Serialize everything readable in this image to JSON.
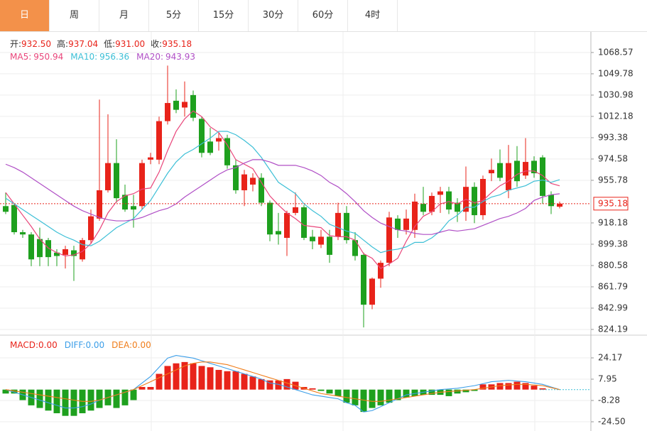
{
  "tabs": [
    {
      "label": "日",
      "selected": true
    },
    {
      "label": "周",
      "selected": false
    },
    {
      "label": "月",
      "selected": false
    },
    {
      "label": "5分",
      "selected": false
    },
    {
      "label": "15分",
      "selected": false
    },
    {
      "label": "30分",
      "selected": false
    },
    {
      "label": "60分",
      "selected": false
    },
    {
      "label": "4时",
      "selected": false
    }
  ],
  "chart_data": [
    {
      "type": "candlestick",
      "ohlc_legend": [
        {
          "label": "开:",
          "value": "932.50"
        },
        {
          "label": "高:",
          "value": "937.04"
        },
        {
          "label": "低:",
          "value": "931.00"
        },
        {
          "label": "收:",
          "value": "935.18"
        }
      ],
      "up_color": "#e8231a",
      "down_color": "#1ea01e",
      "ylim": [
        820.4,
        1086.7
      ],
      "yticks": [
        1068.57,
        1049.78,
        1030.98,
        1012.18,
        993.38,
        974.58,
        955.78,
        918.18,
        899.38,
        880.58,
        861.79,
        842.99,
        824.19
      ],
      "grid": true,
      "last_price": 935.18,
      "open": [
        933,
        934,
        910,
        908,
        904,
        903,
        892,
        890,
        894,
        886,
        903,
        922,
        947,
        971,
        943,
        933,
        933,
        974,
        974,
        1008,
        1026,
        1020,
        1031,
        1010,
        990,
        990,
        993,
        969,
        947,
        952,
        958,
        936,
        911,
        905,
        927,
        932,
        906,
        899,
        906,
        906,
        927,
        903,
        890,
        846,
        869,
        883,
        922,
        912,
        912,
        935,
        928,
        943,
        946,
        936,
        928,
        950,
        925,
        962,
        971,
        947,
        973,
        960,
        973,
        976,
        943,
        932.5
      ],
      "high": [
        945,
        935,
        912,
        910,
        914,
        905,
        895,
        898,
        898,
        905,
        930,
        1027,
        1014,
        992,
        952,
        943,
        974,
        980,
        1012,
        1057,
        1036,
        1043,
        1035,
        1012,
        1002,
        998,
        996,
        974,
        965,
        962,
        962,
        938,
        927,
        929,
        945,
        934,
        912,
        912,
        912,
        936,
        933,
        910,
        892,
        870,
        885,
        928,
        925,
        930,
        944,
        950,
        945,
        950,
        950,
        940,
        968,
        954,
        960,
        975,
        983,
        987,
        986,
        993,
        977,
        978,
        946,
        937.04
      ],
      "low": [
        926,
        908,
        905,
        880,
        880,
        880,
        880,
        878,
        867,
        884,
        900,
        920,
        945,
        936,
        928,
        914,
        930,
        970,
        970,
        1005,
        1015,
        1012,
        1008,
        976,
        978,
        982,
        966,
        944,
        933,
        946,
        933,
        902,
        899,
        889,
        925,
        903,
        895,
        896,
        883,
        903,
        900,
        885,
        826,
        842,
        861,
        880,
        905,
        908,
        905,
        925,
        925,
        927,
        926,
        919,
        920,
        918,
        921,
        955,
        955,
        940,
        950,
        957,
        958,
        935,
        926,
        931
      ],
      "close": [
        928,
        910,
        908,
        886,
        888,
        888,
        889,
        895,
        889,
        903,
        924,
        947,
        971,
        940,
        930,
        930,
        971,
        976,
        1008,
        1024,
        1018,
        1025,
        1011,
        980,
        980,
        993,
        969,
        947,
        961,
        958,
        936,
        908,
        908,
        927,
        932,
        905,
        902,
        906,
        890,
        927,
        903,
        889,
        846,
        869,
        883,
        923,
        912,
        922,
        937,
        928,
        942,
        946,
        930,
        928,
        950,
        925,
        957,
        965,
        958,
        971,
        955,
        972,
        962,
        942,
        933,
        935.18
      ],
      "series": [
        {
          "name": "MA5:",
          "value_label": "950.94",
          "color": "#e9457a",
          "values": [
            945,
            935,
            925,
            915,
            904,
            896,
            892,
            889,
            890,
            893,
            900,
            912,
            927,
            937,
            942,
            944,
            948,
            949,
            963,
            982,
            999,
            1010,
            1017,
            1012,
            1003,
            998,
            987,
            974,
            970,
            966,
            954,
            942,
            934,
            927,
            922,
            916,
            915,
            914,
            907,
            906,
            906,
            903,
            891,
            887,
            878,
            882,
            887,
            902,
            915,
            924,
            928,
            935,
            937,
            935,
            939,
            936,
            938,
            945,
            951,
            955,
            961,
            964,
            964,
            960,
            953,
            950.94
          ]
        },
        {
          "name": "MA10:",
          "value_label": "956.36",
          "color": "#3cbfd6",
          "values": [
            940,
            935,
            930,
            925,
            920,
            915,
            910,
            906,
            903,
            899,
            898,
            902,
            908,
            914,
            918,
            922,
            930,
            938,
            950,
            962,
            972,
            979,
            983,
            988,
            993,
            999,
            999,
            996,
            991,
            985,
            976,
            965,
            954,
            949,
            944,
            935,
            929,
            924,
            917,
            914,
            911,
            909,
            903,
            897,
            892,
            894,
            895,
            897,
            901,
            901,
            905,
            911,
            920,
            925,
            932,
            932,
            937,
            941,
            943,
            947,
            949,
            951,
            955,
            956,
            954,
            956.36
          ]
        },
        {
          "name": "MA20:",
          "value_label": "943.93",
          "color": "#b04fc6",
          "values": [
            970,
            967,
            963,
            958,
            953,
            948,
            943,
            938,
            933,
            929,
            926,
            923,
            921,
            920,
            920,
            921,
            923,
            926,
            929,
            931,
            935,
            941,
            946,
            951,
            956,
            961,
            965,
            967,
            971,
            974,
            974,
            972,
            969,
            969,
            969,
            967,
            964,
            960,
            954,
            950,
            944,
            937,
            929,
            923,
            918,
            915,
            912,
            911,
            909,
            908,
            908,
            910,
            912,
            911,
            912,
            913,
            916,
            919,
            922,
            924,
            927,
            931,
            938,
            941,
            943,
            943.93
          ]
        }
      ]
    },
    {
      "type": "macd",
      "ylim": [
        -30.45,
        39.85
      ],
      "yticks": [
        24.17,
        7.95,
        -8.28,
        {
          "value": -24.5,
          "label": "-24.50"
        }
      ],
      "up_color": "#e8231a",
      "down_color": "#1ea01e",
      "series": [
        {
          "name": "MACD:",
          "value_label": "0.00",
          "color": "#e8231a",
          "kind": "bar",
          "values": [
            -3,
            -3,
            -8,
            -12,
            -14,
            -16,
            -18,
            -20,
            -20,
            -18,
            -16,
            -14,
            -12,
            -14,
            -12,
            -8,
            2,
            2,
            12,
            18,
            20,
            21,
            20,
            18,
            17,
            15,
            14,
            14,
            12,
            10,
            8,
            7,
            7,
            8,
            6,
            2,
            1,
            -1,
            -3,
            -5,
            -10,
            -12,
            -17,
            -14,
            -12,
            -10,
            -8,
            -6,
            -5,
            -4,
            -4,
            -4,
            -5,
            -3,
            -2,
            -1,
            4,
            4,
            5,
            5,
            6,
            5,
            3,
            1,
            0,
            0
          ]
        },
        {
          "name": "DIFF:",
          "value_label": "0.00",
          "color": "#3b9ee8",
          "kind": "line",
          "values": [
            0,
            -2,
            -4,
            -6,
            -8,
            -10,
            -12,
            -14,
            -14,
            -13,
            -11,
            -8,
            -6,
            -4,
            -2,
            0,
            5,
            10,
            17,
            24,
            26,
            25,
            24,
            22,
            20,
            18,
            16,
            14,
            12,
            10,
            8,
            5,
            4,
            2,
            0,
            -2,
            -4,
            -5,
            -6,
            -7,
            -10,
            -12,
            -17,
            -16,
            -13,
            -10,
            -7,
            -4,
            -3,
            -2,
            -1,
            0,
            0.5,
            1,
            2,
            3,
            4.5,
            6,
            6.5,
            7,
            6.5,
            6,
            5,
            4,
            2,
            0
          ]
        },
        {
          "name": "DEA:",
          "value_label": "0.00",
          "color": "#f07d1a",
          "kind": "line",
          "values": [
            0,
            -1,
            -2,
            -3,
            -4,
            -5,
            -6,
            -7,
            -8,
            -9,
            -9,
            -8,
            -6,
            -4,
            -2,
            0,
            3,
            6,
            9,
            12,
            15,
            18,
            20,
            21,
            21,
            20,
            19,
            17,
            15,
            13,
            11,
            9,
            7,
            5,
            3,
            1,
            -1,
            -3,
            -4,
            -5,
            -6,
            -7,
            -8,
            -9,
            -9,
            -8,
            -7,
            -6,
            -5,
            -4,
            -3,
            -2,
            -1.5,
            -1,
            -0.5,
            0,
            1,
            2,
            3,
            3.5,
            4,
            4,
            3.5,
            3,
            1.5,
            0
          ]
        }
      ]
    }
  ]
}
